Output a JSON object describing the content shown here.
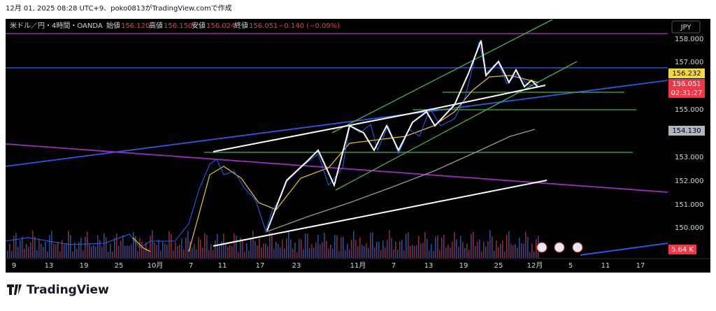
{
  "header": {
    "caption": "12月 01, 2025 08:28 UTC+9、poko0813がTradingView.comで作成"
  },
  "legend": {
    "symbol": "米ドル／円・4時間・OANDA",
    "open_label": "始値",
    "open": "156.120",
    "high_label": "高値",
    "high": "156.150",
    "low_label": "安値",
    "low": "156.024",
    "close_label": "終値",
    "close": "156.051",
    "change": "−0.140 (−0.09%)"
  },
  "currency": "JPY",
  "price_axis": [
    "158.000",
    "157.000",
    "155.000",
    "153.000",
    "152.000",
    "151.000",
    "150.000"
  ],
  "price_tags": {
    "level": "156.232",
    "last": "156.051",
    "countdown": "02:31:27",
    "ma": "154.130",
    "volume": "5.64 K"
  },
  "time_axis": [
    "9",
    "13",
    "19",
    "25",
    "10月",
    "7",
    "11",
    "17",
    "23",
    "11月",
    "7",
    "13",
    "19",
    "25",
    "12月",
    "5",
    "11",
    "17"
  ],
  "brand": "TradingView"
}
